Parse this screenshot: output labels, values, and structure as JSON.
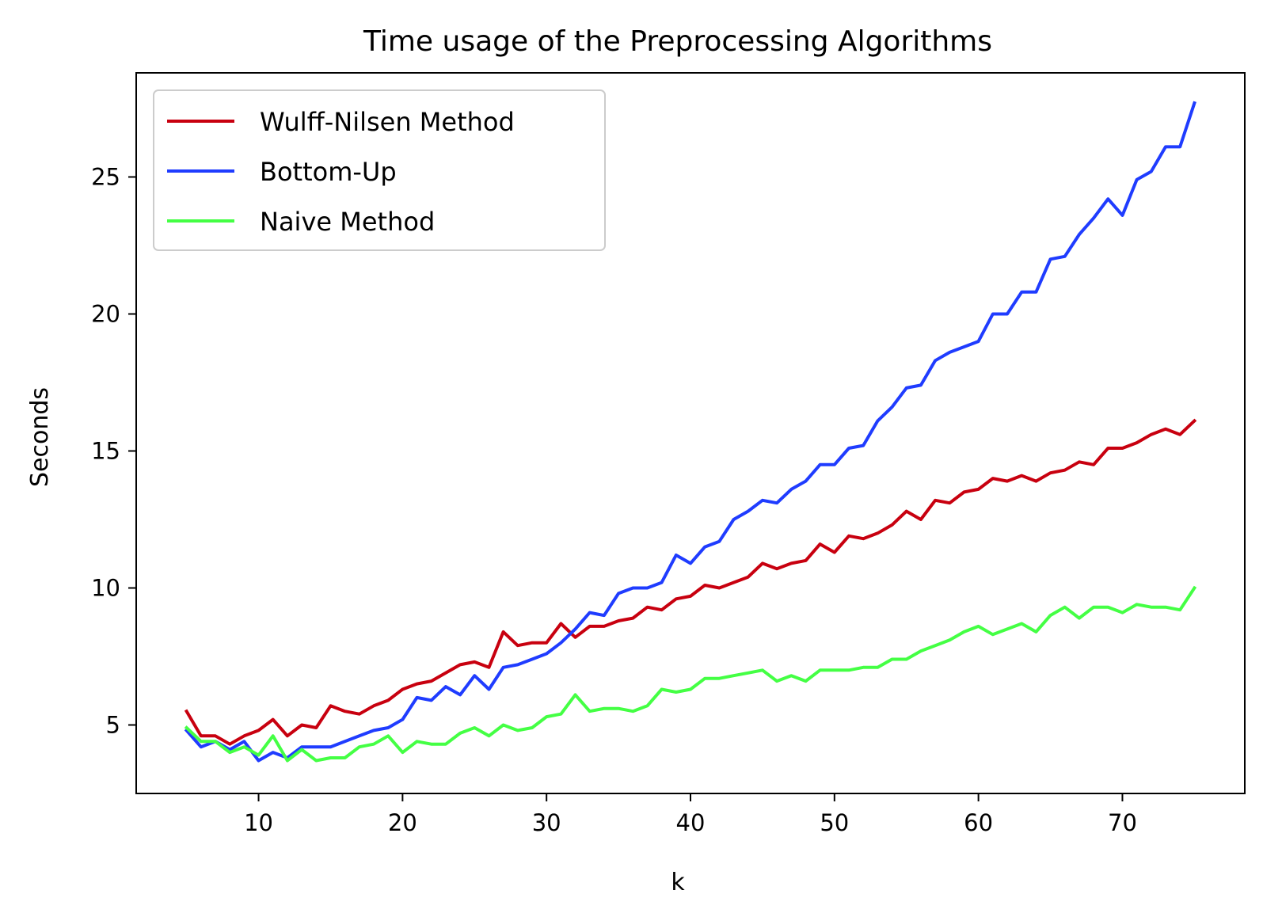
{
  "chart_data": {
    "type": "line",
    "title": "Time usage of the Preprocessing Algorithms",
    "xlabel": "k",
    "ylabel": "Seconds",
    "xlim": [
      1.5,
      78.5
    ],
    "ylim": [
      2.5,
      28.8
    ],
    "xticks": [
      10,
      20,
      30,
      40,
      50,
      60,
      70
    ],
    "yticks": [
      5,
      10,
      15,
      20,
      25
    ],
    "grid": false,
    "legend_position": "top-left",
    "x": [
      5,
      6,
      7,
      8,
      9,
      10,
      11,
      12,
      13,
      14,
      15,
      16,
      17,
      18,
      19,
      20,
      21,
      22,
      23,
      24,
      25,
      26,
      27,
      28,
      29,
      30,
      31,
      32,
      33,
      34,
      35,
      36,
      37,
      38,
      39,
      40,
      41,
      42,
      43,
      44,
      45,
      46,
      47,
      48,
      49,
      50,
      51,
      52,
      53,
      54,
      55,
      56,
      57,
      58,
      59,
      60,
      61,
      62,
      63,
      64,
      65,
      66,
      67,
      68,
      69,
      70,
      71,
      72,
      73,
      74,
      75
    ],
    "series": [
      {
        "name": "Wulff-Nilsen Method",
        "color": "#c8000f",
        "values": [
          5.5,
          4.6,
          4.6,
          4.3,
          4.6,
          4.8,
          5.2,
          4.6,
          5.0,
          4.9,
          5.7,
          5.5,
          5.4,
          5.7,
          5.9,
          6.3,
          6.5,
          6.6,
          6.9,
          7.2,
          7.3,
          7.1,
          8.4,
          7.9,
          8.0,
          8.0,
          8.7,
          8.2,
          8.6,
          8.6,
          8.8,
          8.9,
          9.3,
          9.2,
          9.6,
          9.7,
          10.1,
          10.0,
          10.2,
          10.4,
          10.9,
          10.7,
          10.9,
          11.0,
          11.6,
          11.3,
          11.9,
          11.8,
          12.0,
          12.3,
          12.8,
          12.5,
          13.2,
          13.1,
          13.5,
          13.6,
          14.0,
          13.9,
          14.1,
          13.9,
          14.2,
          14.3,
          14.6,
          14.5,
          15.1,
          15.1,
          15.3,
          15.6,
          15.8,
          15.6,
          16.1
        ]
      },
      {
        "name": "Bottom-Up",
        "color": "#1f3cff",
        "values": [
          4.8,
          4.2,
          4.4,
          4.1,
          4.4,
          3.7,
          4.0,
          3.8,
          4.2,
          4.2,
          4.2,
          4.4,
          4.6,
          4.8,
          4.9,
          5.2,
          6.0,
          5.9,
          6.4,
          6.1,
          6.8,
          6.3,
          7.1,
          7.2,
          7.4,
          7.6,
          8.0,
          8.5,
          9.1,
          9.0,
          9.8,
          10.0,
          10.0,
          10.2,
          11.2,
          10.9,
          11.5,
          11.7,
          12.5,
          12.8,
          13.2,
          13.1,
          13.6,
          13.9,
          14.5,
          14.5,
          15.1,
          15.2,
          16.1,
          16.6,
          17.3,
          17.4,
          18.3,
          18.6,
          18.8,
          19.0,
          20.0,
          20.0,
          20.8,
          20.8,
          22.0,
          22.1,
          22.9,
          23.5,
          24.2,
          23.6,
          24.9,
          25.2,
          26.1,
          26.1,
          27.7
        ]
      },
      {
        "name": "Naive Method",
        "color": "#44ff44",
        "values": [
          4.9,
          4.4,
          4.4,
          4.0,
          4.2,
          3.9,
          4.6,
          3.7,
          4.1,
          3.7,
          3.8,
          3.8,
          4.2,
          4.3,
          4.6,
          4.0,
          4.4,
          4.3,
          4.3,
          4.7,
          4.9,
          4.6,
          5.0,
          4.8,
          4.9,
          5.3,
          5.4,
          6.1,
          5.5,
          5.6,
          5.6,
          5.5,
          5.7,
          6.3,
          6.2,
          6.3,
          6.7,
          6.7,
          6.8,
          6.9,
          7.0,
          6.6,
          6.8,
          6.6,
          7.0,
          7.0,
          7.0,
          7.1,
          7.1,
          7.4,
          7.4,
          7.7,
          7.9,
          8.1,
          8.4,
          8.6,
          8.3,
          8.5,
          8.7,
          8.4,
          9.0,
          9.3,
          8.9,
          9.3,
          9.3,
          9.1,
          9.4,
          9.3,
          9.3,
          9.2,
          10.0
        ]
      }
    ]
  }
}
